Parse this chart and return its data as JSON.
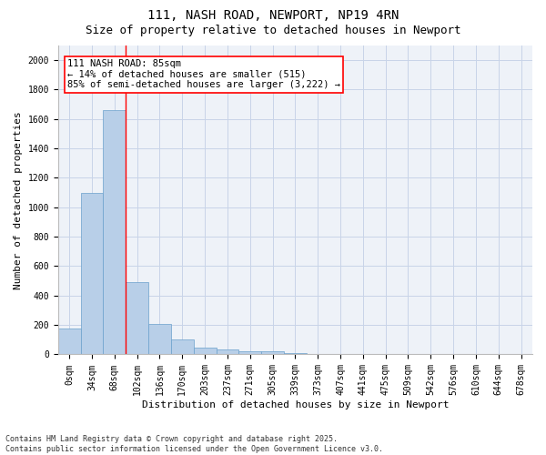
{
  "title": "111, NASH ROAD, NEWPORT, NP19 4RN",
  "subtitle": "Size of property relative to detached houses in Newport",
  "xlabel": "Distribution of detached houses by size in Newport",
  "ylabel": "Number of detached properties",
  "categories": [
    "0sqm",
    "34sqm",
    "68sqm",
    "102sqm",
    "136sqm",
    "170sqm",
    "203sqm",
    "237sqm",
    "271sqm",
    "305sqm",
    "339sqm",
    "373sqm",
    "407sqm",
    "441sqm",
    "475sqm",
    "509sqm",
    "542sqm",
    "576sqm",
    "610sqm",
    "644sqm",
    "678sqm"
  ],
  "values": [
    175,
    1100,
    1660,
    490,
    205,
    100,
    45,
    35,
    22,
    22,
    10,
    0,
    0,
    0,
    0,
    0,
    0,
    0,
    0,
    0,
    0
  ],
  "bar_color": "#b8cfe8",
  "bar_edge_color": "#6aa0cc",
  "vline_x": 2.5,
  "vline_color": "red",
  "annotation_text": "111 NASH ROAD: 85sqm\n← 14% of detached houses are smaller (515)\n85% of semi-detached houses are larger (3,222) →",
  "annotation_box_color": "red",
  "annotation_fontsize": 7.5,
  "ylim": [
    0,
    2100
  ],
  "yticks": [
    0,
    200,
    400,
    600,
    800,
    1000,
    1200,
    1400,
    1600,
    1800,
    2000
  ],
  "grid_color": "#c8d4e8",
  "bg_color": "#eef2f8",
  "footer1": "Contains HM Land Registry data © Crown copyright and database right 2025.",
  "footer2": "Contains public sector information licensed under the Open Government Licence v3.0.",
  "title_fontsize": 10,
  "subtitle_fontsize": 9,
  "axis_fontsize": 8,
  "tick_fontsize": 7,
  "footer_fontsize": 6
}
